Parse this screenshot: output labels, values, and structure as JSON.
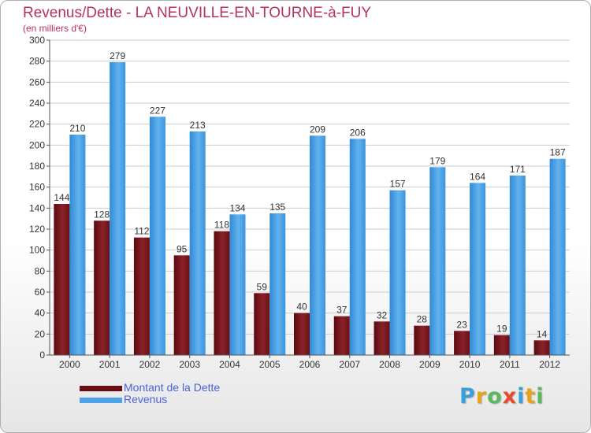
{
  "title": "Revenus/Dette - LA NEUVILLE-EN-TOURNE-à-FUY",
  "subtitle": "(en milliers d'€)",
  "brand": {
    "letters": [
      "P",
      "r",
      "o",
      "x",
      "i",
      "t",
      "i"
    ],
    "colors": [
      "#3aa0d8",
      "#e8a31a",
      "#5cb85c",
      "#e84a2a",
      "#3aa0d8",
      "#e8a31a",
      "#5cb85c"
    ]
  },
  "colors": {
    "dette": "#7a1a1f",
    "revenus": "#4da3e6",
    "grid": "#cccccc",
    "axis_text": "#333333"
  },
  "legend": [
    {
      "label": "Montant de la Dette",
      "color": "#6b0d12"
    },
    {
      "label": "Revenus",
      "color": "#4da3e6"
    }
  ],
  "chart_data": {
    "type": "bar",
    "categories": [
      "2000",
      "2001",
      "2002",
      "2003",
      "2004",
      "2005",
      "2006",
      "2007",
      "2008",
      "2009",
      "2010",
      "2011",
      "2012"
    ],
    "series": [
      {
        "name": "Montant de la Dette",
        "values": [
          144,
          128,
          112,
          95,
          118,
          59,
          40,
          37,
          32,
          28,
          23,
          19,
          14
        ]
      },
      {
        "name": "Revenus",
        "values": [
          210,
          279,
          227,
          213,
          134,
          135,
          209,
          206,
          157,
          179,
          164,
          171,
          187
        ]
      }
    ],
    "yticks": [
      "0",
      "20",
      "40",
      "60",
      "80",
      "100",
      "120",
      "140",
      "160",
      "180",
      "200",
      "220",
      "240",
      "260",
      "280",
      "300"
    ],
    "ylim": [
      0,
      300
    ],
    "grid": true,
    "legend_position": "bottom-left"
  }
}
